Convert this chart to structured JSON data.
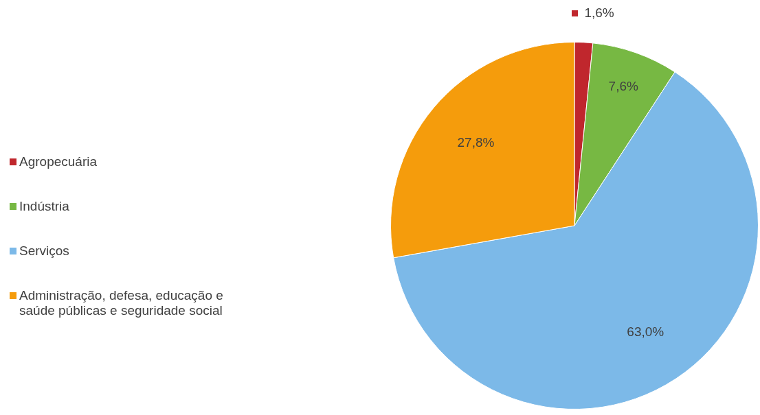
{
  "chart_data": {
    "type": "pie",
    "categories": [
      "Agropecuária",
      "Indústria",
      "Serviços",
      "Administração, defesa, educação e saúde públicas e seguridade social"
    ],
    "values": [
      1.6,
      7.6,
      63.0,
      27.8
    ],
    "colors": [
      "#c0272d",
      "#77b843",
      "#7cb9e8",
      "#f59c0c"
    ],
    "value_labels": [
      "1,6%",
      "7,6%",
      "63,0%",
      "27,8%"
    ],
    "legend": "left"
  }
}
